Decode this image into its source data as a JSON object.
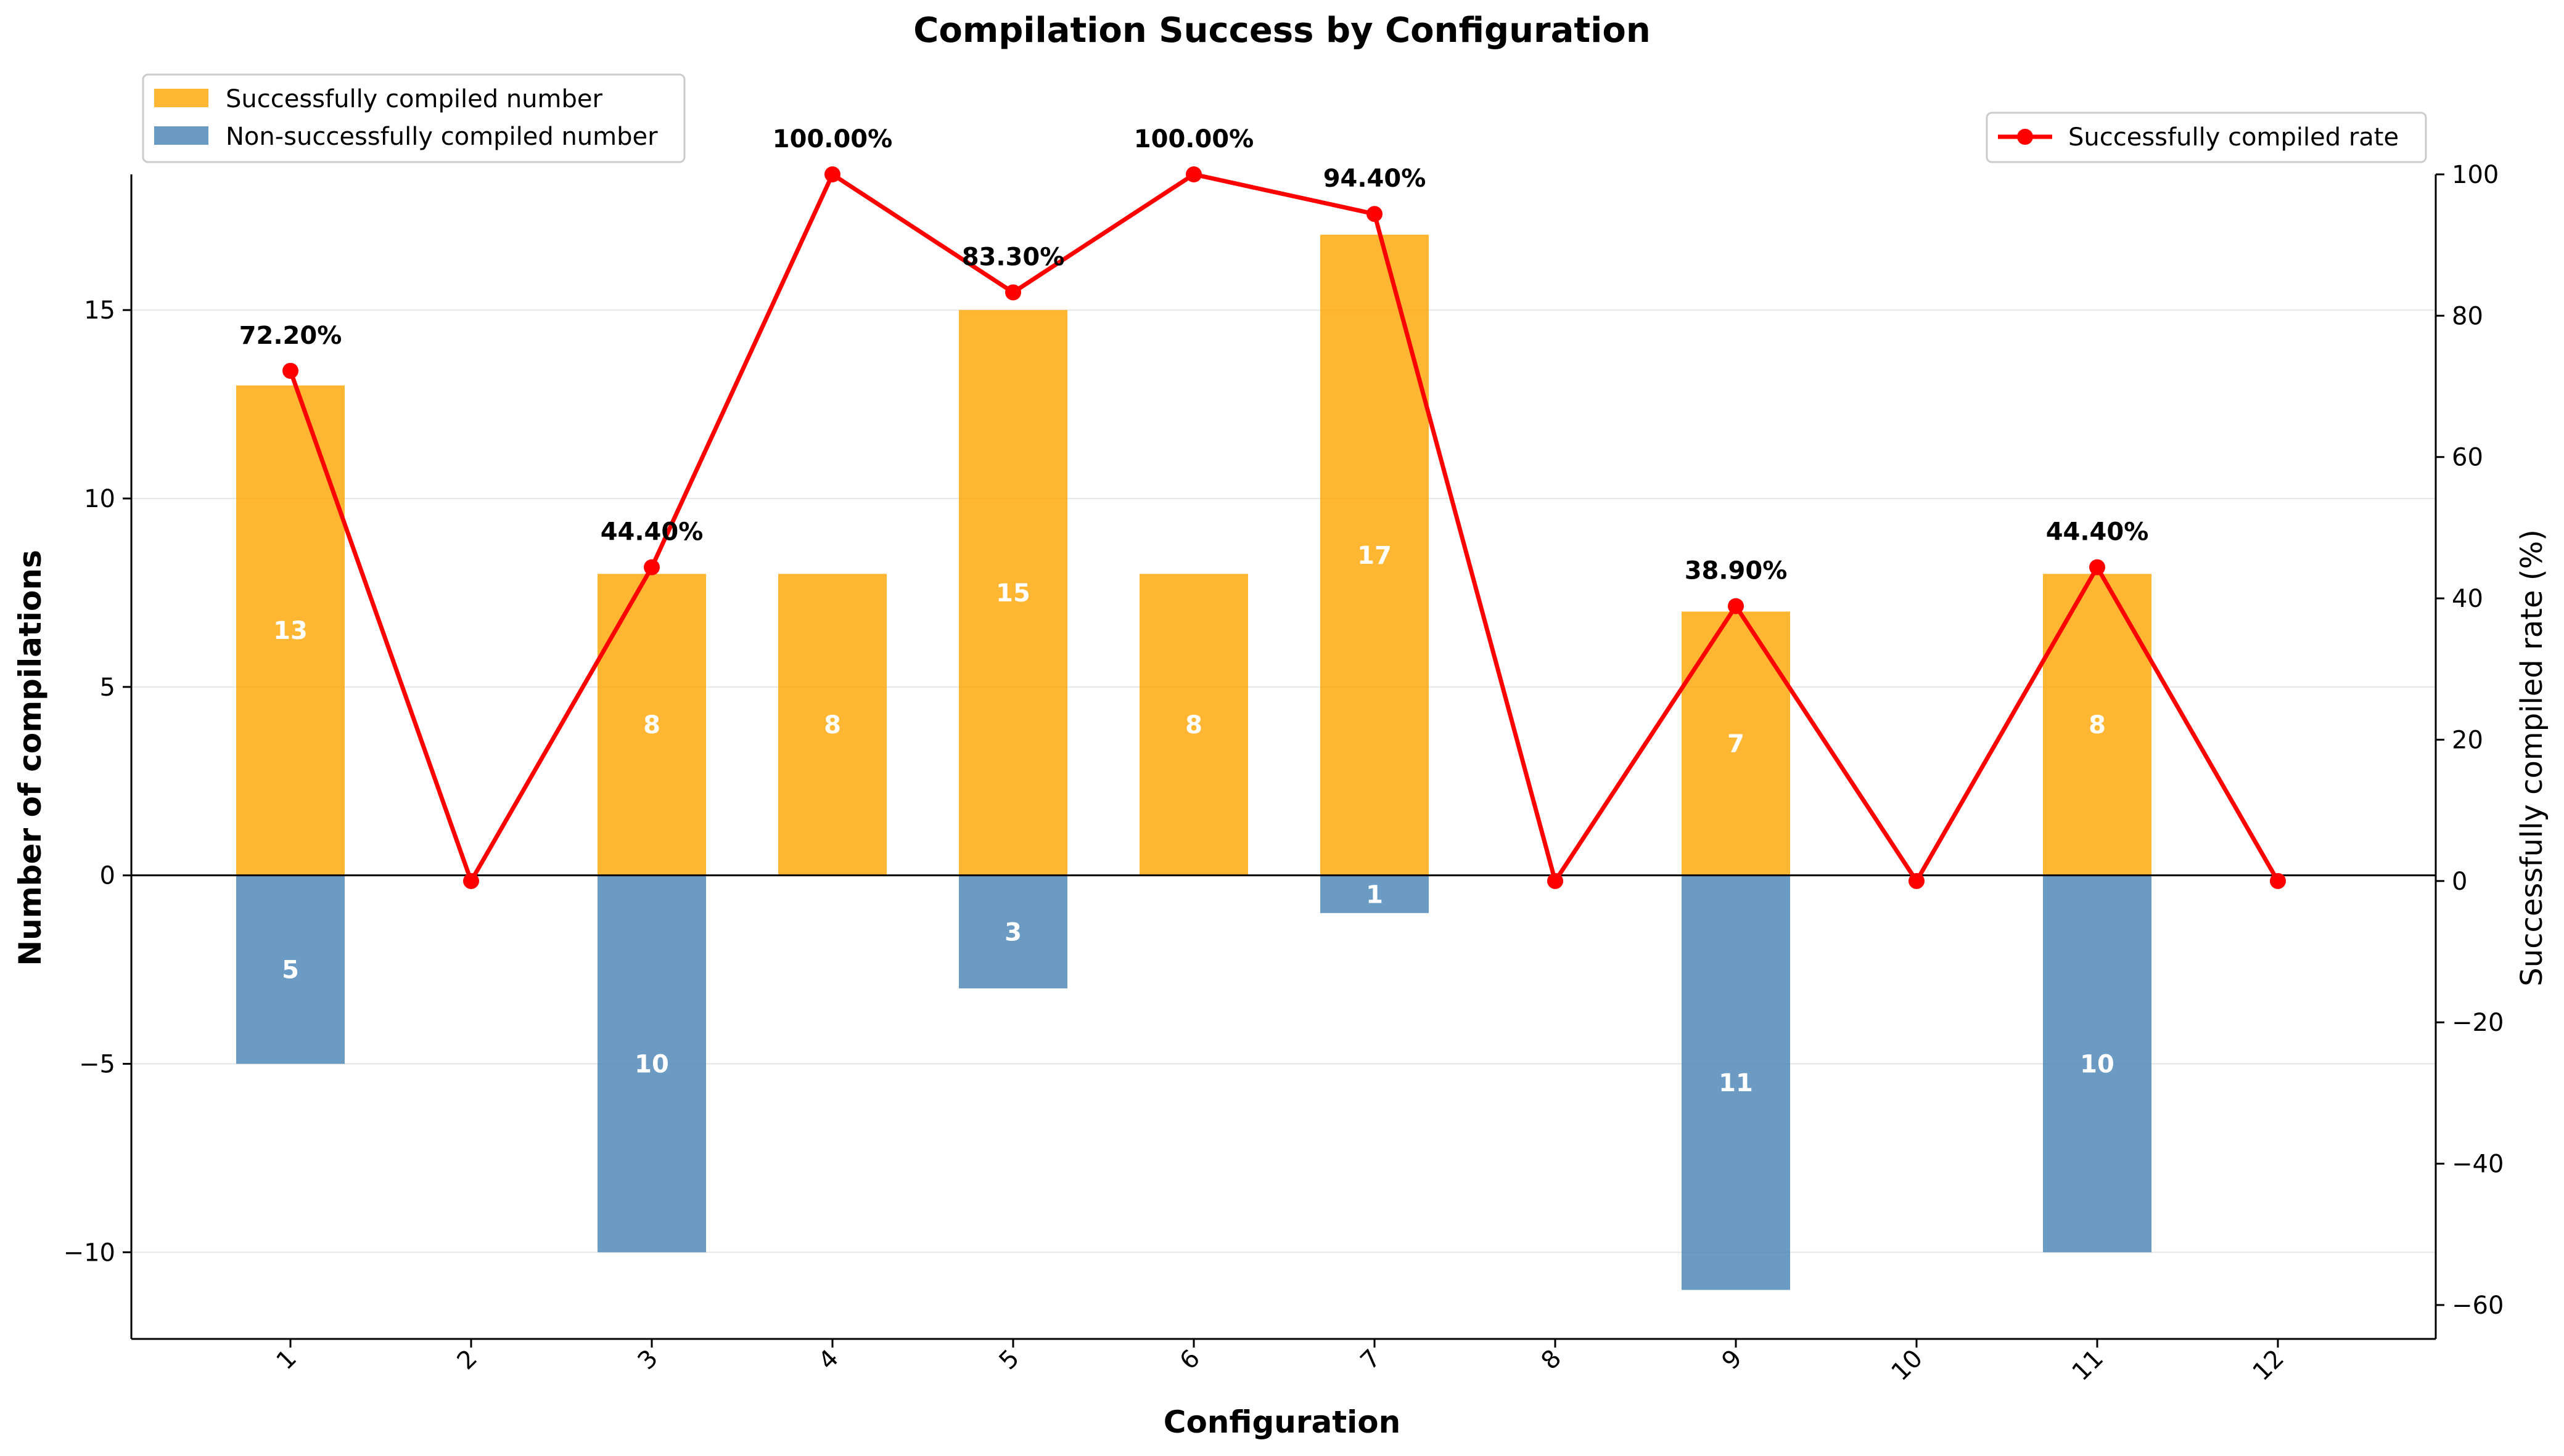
{
  "chart_data": {
    "type": "bar",
    "title": "Compilation Success by Configuration",
    "xlabel": "Configuration",
    "ylabel": "Number of compilations",
    "y2label": "Successfully compiled rate (%)",
    "categories": [
      "1",
      "2",
      "3",
      "4",
      "5",
      "6",
      "7",
      "8",
      "9",
      "10",
      "11",
      "12"
    ],
    "ylim": [
      -12.3,
      18.6
    ],
    "y2lim": [
      -64.8,
      100
    ],
    "yticks": [
      -10,
      -5,
      0,
      5,
      10,
      15
    ],
    "y2ticks": [
      -60,
      -40,
      -20,
      0,
      20,
      40,
      60,
      80,
      100
    ],
    "grid": "horizontal",
    "series": [
      {
        "name": "Successfully compiled number",
        "kind": "bar",
        "axis": "left",
        "color": "#FFA500",
        "values": [
          13,
          0,
          8,
          8,
          15,
          8,
          17,
          0,
          7,
          0,
          8,
          0
        ],
        "data_labels": [
          "13",
          "",
          "8",
          "8",
          "15",
          "8",
          "17",
          "",
          "7",
          "",
          "8",
          ""
        ]
      },
      {
        "name": "Non-successfully compiled number",
        "kind": "bar",
        "axis": "left",
        "color": "#4682B4",
        "values": [
          -5,
          0,
          -10,
          0,
          -3,
          0,
          -1,
          0,
          -11,
          0,
          -10,
          0
        ],
        "data_labels": [
          "5",
          "",
          "10",
          "",
          "3",
          "",
          "1",
          "",
          "11",
          "",
          "10",
          ""
        ]
      },
      {
        "name": "Successfully compiled rate",
        "kind": "line",
        "axis": "right",
        "color": "#FF0000",
        "values": [
          72.2,
          0,
          44.4,
          100,
          83.3,
          100,
          94.4,
          0,
          38.9,
          0,
          44.4,
          0
        ],
        "data_labels": [
          "72.20%",
          "",
          "44.40%",
          "100.00%",
          "83.30%",
          "100.00%",
          "94.40%",
          "",
          "38.90%",
          "",
          "44.40%",
          ""
        ]
      }
    ],
    "legend_left": {
      "placement": "top-left",
      "entries": [
        "Successfully compiled number",
        "Non-successfully compiled number"
      ]
    },
    "legend_right": {
      "placement": "top-right",
      "entries": [
        "Successfully compiled rate"
      ]
    }
  }
}
